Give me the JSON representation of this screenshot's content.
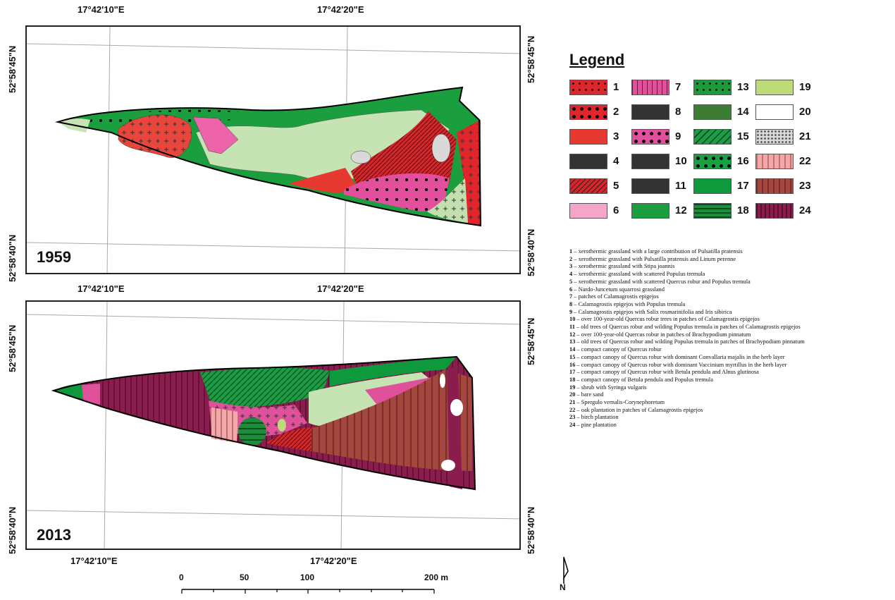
{
  "maps": [
    {
      "year": "1959",
      "lon_labels_top": [
        "17°42'10\"E",
        "17°42'20\"E"
      ],
      "lat_labels": [
        "52°58'45\"N",
        "52°58'40\"N"
      ]
    },
    {
      "year": "2013",
      "lon_labels_top": [
        "17°42'10\"E",
        "17°42'20\"E"
      ],
      "lon_labels_bottom": [
        "17°42'10\"E",
        "17°42'20\"E"
      ],
      "lat_labels": [
        "52°58'45\"N",
        "52°58'40\"N"
      ]
    }
  ],
  "legend": {
    "title": "Legend",
    "items": [
      {
        "num": "1",
        "color": "#e0262a"
      },
      {
        "num": "2",
        "color": "#e0262a"
      },
      {
        "num": "3",
        "color": "#e63a30"
      },
      {
        "num": "4",
        "color": "#e8463c"
      },
      {
        "num": "5",
        "color": "#d7262b"
      },
      {
        "num": "6",
        "color": "#f4a6c8"
      },
      {
        "num": "7",
        "color": "#e0519b"
      },
      {
        "num": "8",
        "color": "#ec63a9"
      },
      {
        "num": "9",
        "color": "#e24f9c"
      },
      {
        "num": "10",
        "color": "#c6e3b4"
      },
      {
        "num": "11",
        "color": "#c2e0ae"
      },
      {
        "num": "12",
        "color": "#1b9e3e"
      },
      {
        "num": "13",
        "color": "#1c9b3d"
      },
      {
        "num": "14",
        "color": "#3c7d35"
      },
      {
        "num": "15",
        "color": "#1f9b45"
      },
      {
        "num": "16",
        "color": "#19a043"
      },
      {
        "num": "17",
        "color": "#0e9a3c"
      },
      {
        "num": "18",
        "color": "#1c8e3a"
      },
      {
        "num": "19",
        "color": "#bddb78"
      },
      {
        "num": "20",
        "color": "#ffffff"
      },
      {
        "num": "21",
        "color": "#d9d9d9"
      },
      {
        "num": "22",
        "color": "#f2a8a8"
      },
      {
        "num": "23",
        "color": "#a4483f"
      },
      {
        "num": "24",
        "color": "#8b1c4e"
      }
    ],
    "descriptions": [
      {
        "n": "1",
        "text": " – xerothermic grassland with a large contribution of Pulsatilla pratensis"
      },
      {
        "n": "2",
        "text": " – xerothermic grassland with Pulsatilla pratensis and Linum perenne"
      },
      {
        "n": "3",
        "text": " – xerothermic grassland with Stipa joannis"
      },
      {
        "n": "4",
        "text": " – xerothermic grassland with scattered Populus tremula"
      },
      {
        "n": "5",
        "text": " – xerothermic grassland with scattered Quercus robur and Populus tremula"
      },
      {
        "n": "6",
        "text": " – Nardo-Juncetum squarrosi grassland"
      },
      {
        "n": "7",
        "text": " – patches of Calamagrostis epigejos"
      },
      {
        "n": "8",
        "text": " – Calamagrostis epigejos with Populus tremula"
      },
      {
        "n": "9",
        "text": " – Calamagrostis epigejos with Salix rosmarinifolia and Iris sibirica"
      },
      {
        "n": "10",
        "text": " – over 100-year-old Quercus robur trees in patches of Calamagrostis epigejos"
      },
      {
        "n": "11",
        "text": " – old trees of Quercus robur and wilding Populus tremula in patches of Calamagrostis epigejos"
      },
      {
        "n": "12",
        "text": " – over 100-year-old Quercus robur in patches of Brachypodium pinnatum"
      },
      {
        "n": "13",
        "text": " – old trees of Quercus robur and wilding Populus tremula in patches of Brachypodium pinnatum"
      },
      {
        "n": "14",
        "text": " – compact canopy of Quercus robur"
      },
      {
        "n": "15",
        "text": " – compact canopy of Quercus robur with dominant Convallaria majalis in the herb layer"
      },
      {
        "n": "16",
        "text": " – compact canopy of Quercus robur with dominant Vaccinium myrtillus in the herb layer"
      },
      {
        "n": "17",
        "text": " – compact canopy of Quercus robur with Betula pendula and Alnus glutinosa"
      },
      {
        "n": "18",
        "text": " – compact canopy of Betula pendula and Populus tremula"
      },
      {
        "n": "19",
        "text": " – shrub with Syringa vulgaris"
      },
      {
        "n": "20",
        "text": " – bare sand"
      },
      {
        "n": "21",
        "text": " – Spergulo vernalis-Corynephoretum"
      },
      {
        "n": "22",
        "text": " – oak plantation in patches of Calamagrostis epigejos"
      },
      {
        "n": "23",
        "text": " – birch plantation"
      },
      {
        "n": "24",
        "text": " – pine plantation"
      }
    ]
  },
  "scale": {
    "labels": [
      "0",
      "50",
      "100",
      "200 m"
    ]
  },
  "north_label": "N"
}
